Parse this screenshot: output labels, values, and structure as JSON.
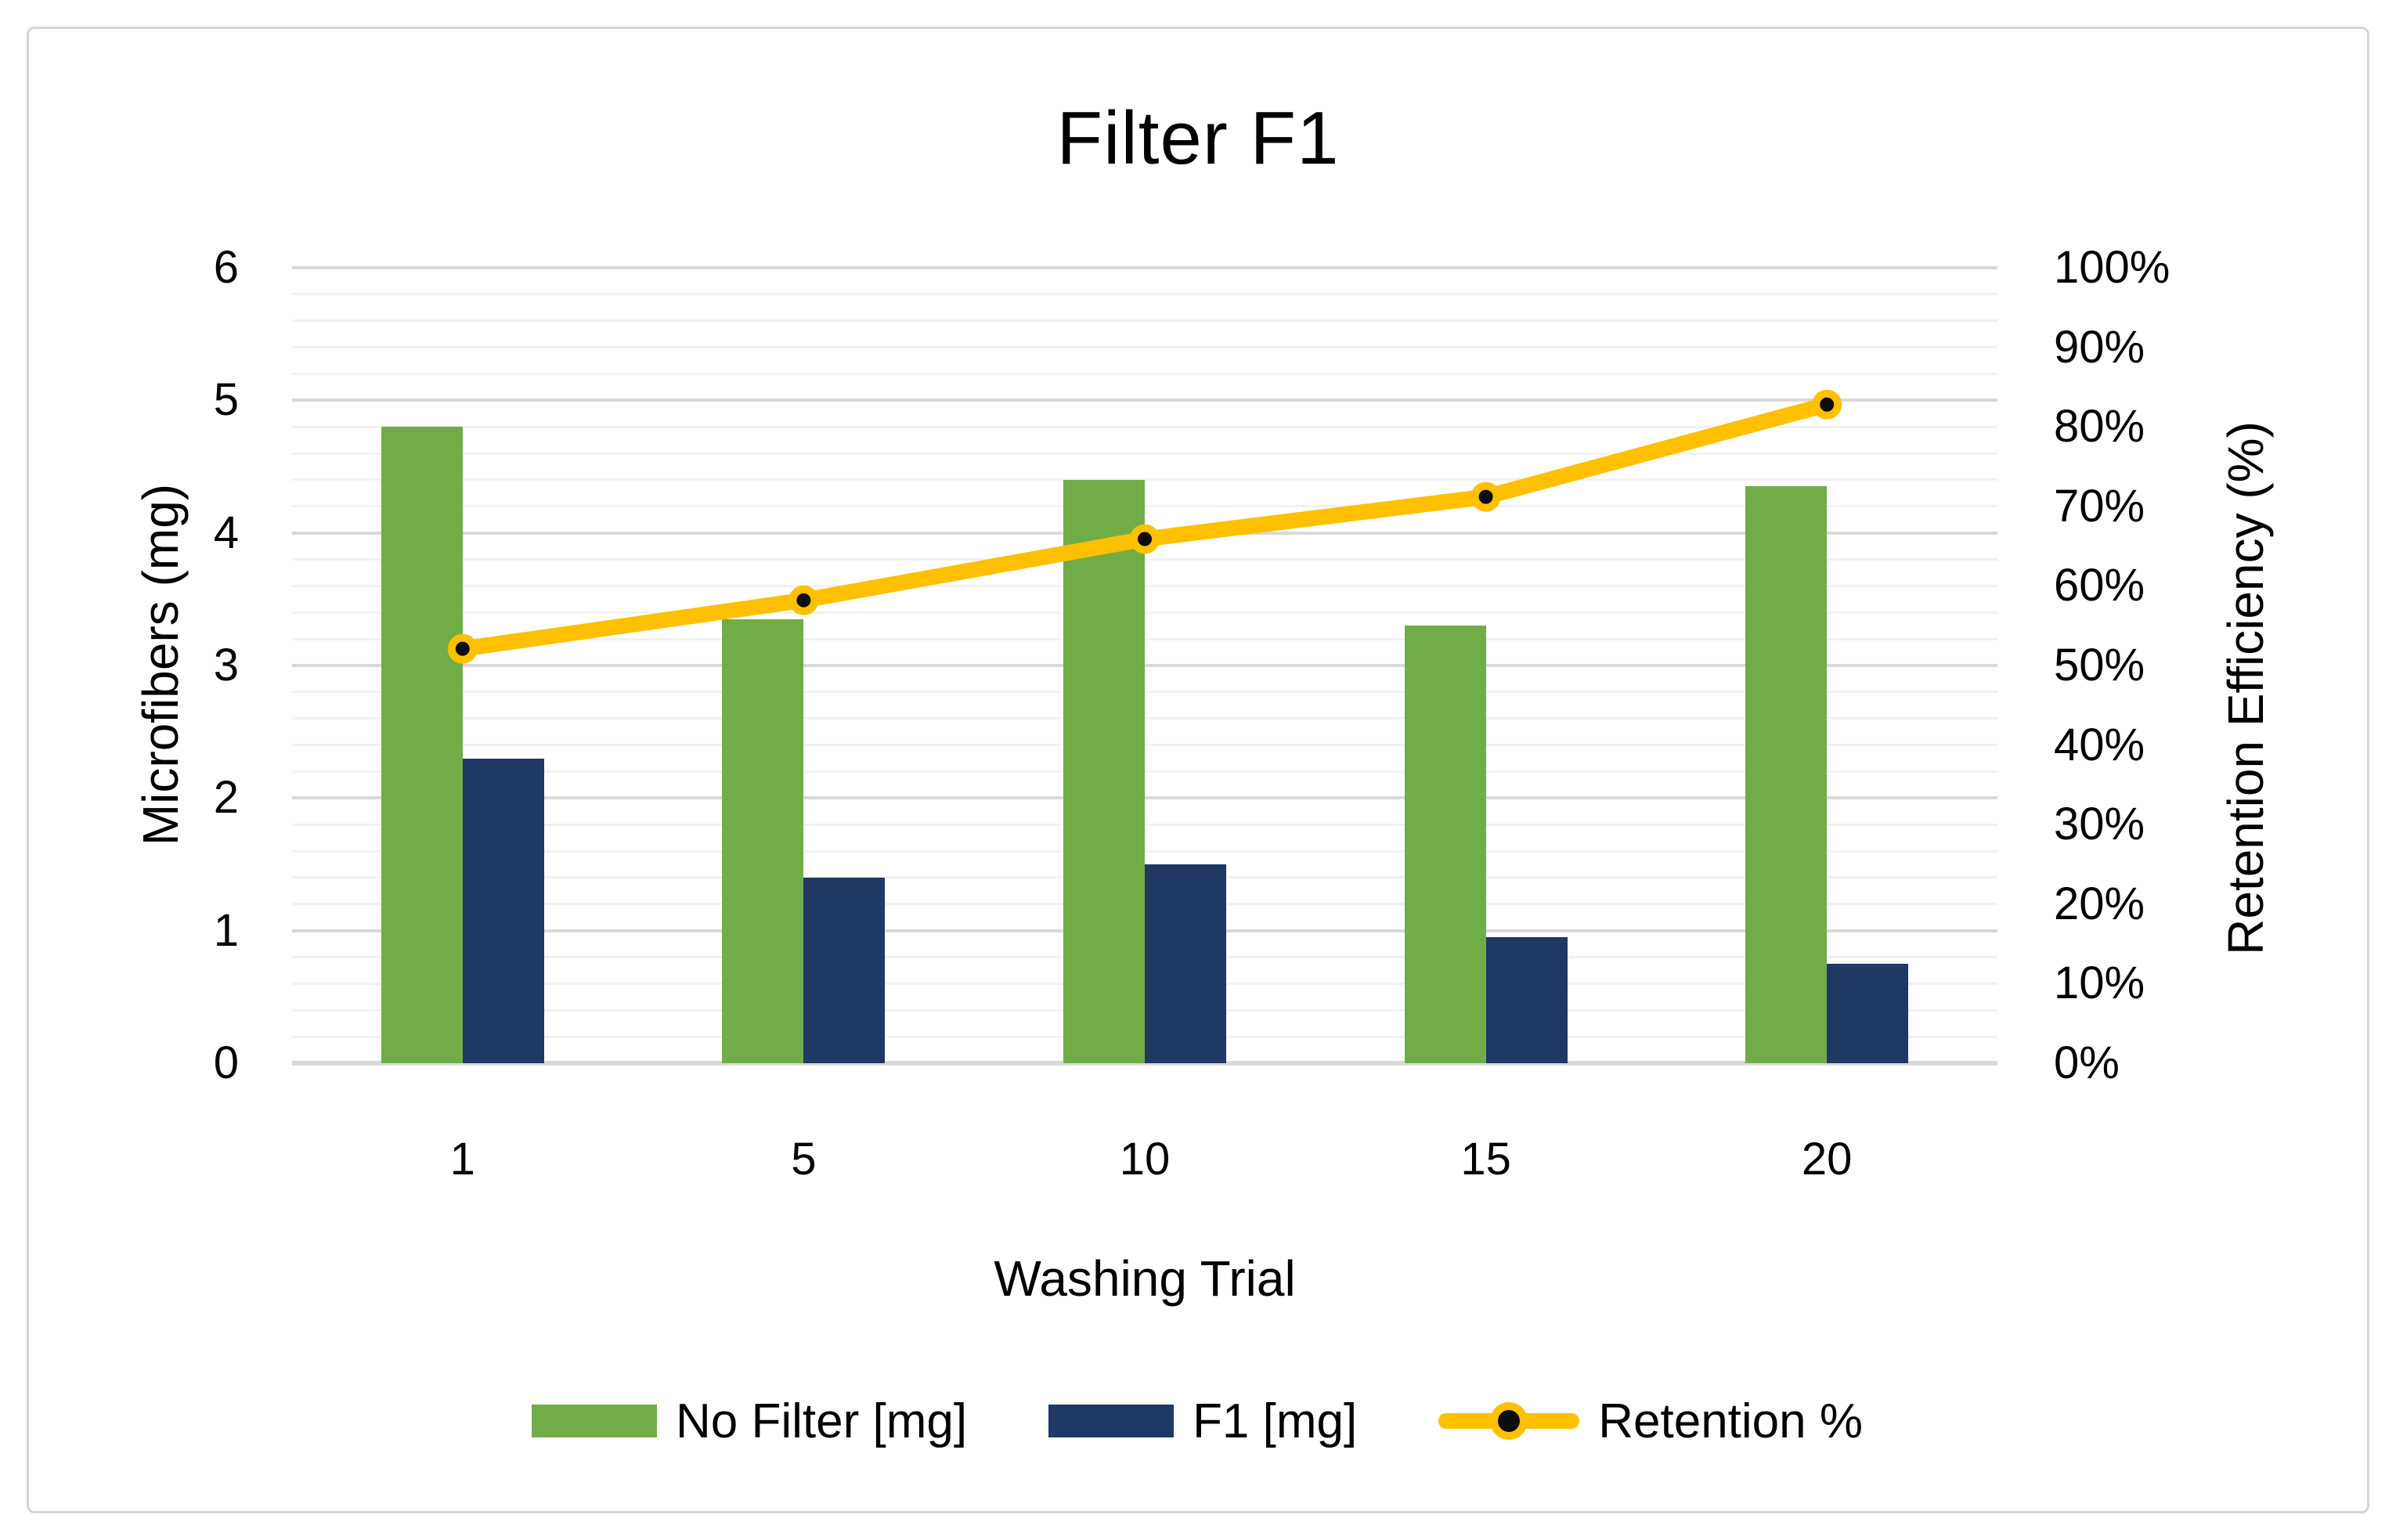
{
  "chart_data": {
    "type": "combo-bar-line",
    "title": "Filter F1",
    "categories": [
      "1",
      "5",
      "10",
      "15",
      "20"
    ],
    "series": [
      {
        "name": "No Filter [mg]",
        "type": "bar",
        "axis": "left",
        "color": "#70AD47",
        "values": [
          4.8,
          3.35,
          4.4,
          3.3,
          4.35
        ]
      },
      {
        "name": "F1 [mg]",
        "type": "bar",
        "axis": "left",
        "color": "#1F3864",
        "values": [
          2.3,
          1.4,
          1.5,
          0.95,
          0.75
        ]
      },
      {
        "name": "Retention %",
        "type": "line",
        "axis": "right",
        "color": "#FFC000",
        "marker_fill": "#0D0D0D",
        "values_percent": [
          52.1,
          58.2,
          65.9,
          71.2,
          82.8
        ]
      }
    ],
    "x_axis": {
      "title": "Washing Trial",
      "tick_labels": [
        "1",
        "5",
        "10",
        "15",
        "20"
      ]
    },
    "left_axis": {
      "title": "Microfibers (mg)",
      "min": 0,
      "max": 6,
      "major_step": 1,
      "minor_step": 0.2,
      "tick_labels": [
        "0",
        "1",
        "2",
        "3",
        "4",
        "5",
        "6"
      ]
    },
    "right_axis": {
      "title": "Retention Efficiency (%)",
      "min": 0,
      "max": 100,
      "major_step": 10,
      "tick_labels": [
        "0%",
        "10%",
        "20%",
        "30%",
        "40%",
        "50%",
        "60%",
        "70%",
        "80%",
        "90%",
        "100%"
      ]
    },
    "grid": {
      "minor_color": "#F2F2F2",
      "major_color": "#D9D9D9",
      "baseline_color": "#D9D9D9"
    },
    "frame_border_color": "#D6D6D6",
    "background": "#FFFFFF",
    "legend_position": "bottom"
  }
}
